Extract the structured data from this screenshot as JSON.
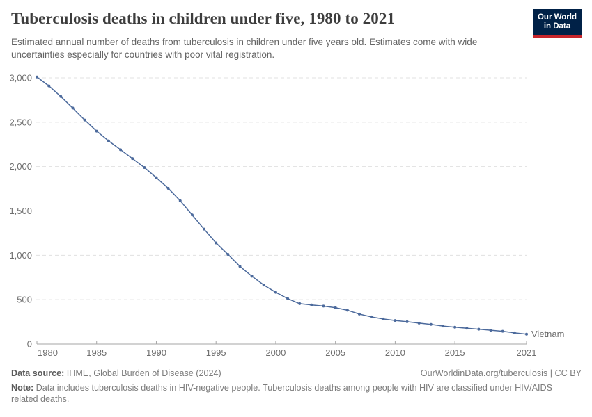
{
  "header": {
    "title": "Tuberculosis deaths in children under five, 1980 to 2021",
    "subtitle": "Estimated annual number of deaths from tuberculosis in children under five years old. Estimates come with wide uncertainties especially for countries with poor vital registration.",
    "logo": {
      "line1": "Our World",
      "line2": "in Data",
      "bg_color": "#002147",
      "accent_color": "#c7252b"
    }
  },
  "chart_data": {
    "type": "line",
    "title": "Tuberculosis deaths in children under five, 1980 to 2021",
    "xlabel": "",
    "ylabel": "",
    "x": [
      1980,
      1981,
      1982,
      1983,
      1984,
      1985,
      1986,
      1987,
      1988,
      1989,
      1990,
      1991,
      1992,
      1993,
      1994,
      1995,
      1996,
      1997,
      1998,
      1999,
      2000,
      2001,
      2002,
      2003,
      2004,
      2005,
      2006,
      2007,
      2008,
      2009,
      2010,
      2011,
      2012,
      2013,
      2014,
      2015,
      2016,
      2017,
      2018,
      2019,
      2020,
      2021
    ],
    "series": [
      {
        "name": "Vietnam",
        "color": "#4c6a9c",
        "values": [
          3010,
          2910,
          2790,
          2660,
          2525,
          2400,
          2290,
          2190,
          2090,
          1990,
          1875,
          1755,
          1615,
          1455,
          1295,
          1140,
          1010,
          875,
          765,
          665,
          583,
          512,
          455,
          441,
          428,
          409,
          381,
          338,
          306,
          283,
          265,
          252,
          236,
          221,
          203,
          190,
          178,
          167,
          156,
          144,
          126,
          112
        ]
      }
    ],
    "ylim": [
      0,
      3000
    ],
    "yticks": [
      0,
      500,
      1000,
      1500,
      2000,
      2500,
      3000
    ],
    "ytick_labels": [
      "0",
      "500",
      "1,000",
      "1,500",
      "2,000",
      "2,500",
      "3,000"
    ],
    "xticks": [
      1980,
      1985,
      1990,
      1995,
      2000,
      2005,
      2010,
      2015,
      2021
    ],
    "xtick_labels": [
      "1980",
      "1985",
      "1990",
      "1995",
      "2000",
      "2005",
      "2010",
      "2015",
      "2021"
    ],
    "grid": "horizontal-dashed",
    "grid_color": "#e0e0e0",
    "axis_color": "#a6a6a6",
    "tick_label_color": "#6e6e6e",
    "legend_position": "end-of-line",
    "end_label": "Vietnam"
  },
  "footer": {
    "datasource_label": "Data source:",
    "datasource_text": " IHME, Global Burden of Disease (2024)",
    "link": "OurWorldinData.org/tuberculosis | CC BY",
    "note_label": "Note:",
    "note_text": " Data includes tuberculosis deaths in HIV-negative people. Tuberculosis deaths among people with HIV are classified under HIV/AIDS related deaths."
  }
}
